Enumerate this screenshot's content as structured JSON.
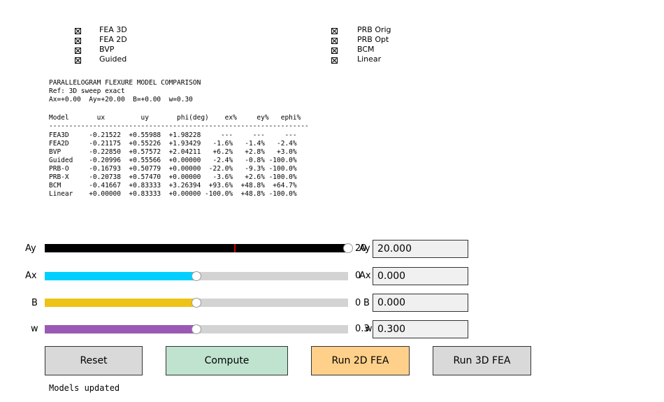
{
  "legend": {
    "left": [
      "FEA 3D",
      "FEA 2D",
      "BVP",
      "Guided"
    ],
    "right": [
      "PRB Orig",
      "PRB Opt",
      "BCM",
      "Linear"
    ]
  },
  "report": {
    "title": "PARALLELOGRAM FLEXURE MODEL COMPARISON",
    "ref": "Ref: 3D sweep exact",
    "params": "Ax=+0.00  Ay=+20.00  B=+0.00  w=0.30",
    "header": "Model       ux         uy       phi(deg)    ex%     ey%   ephi%",
    "rule": "-----------------------------------------------------------------",
    "rows": [
      "FEA3D     -0.21522  +0.55988  +1.98228     ---     ---     ---",
      "FEA2D     -0.21175  +0.55226  +1.93429   -1.6%   -1.4%   -2.4%",
      "BVP       -0.22850  +0.57572  +2.04211   +6.2%   +2.8%   +3.0%",
      "Guided    -0.20996  +0.55566  +0.00000   -2.4%   -0.8% -100.0%",
      "PRB-O     -0.16793  +0.50779  +0.00000  -22.0%   -9.3% -100.0%",
      "PRB-X     -0.20738  +0.57470  +0.00000   -3.6%   +2.6% -100.0%",
      "BCM       -0.41667  +0.83333  +3.26394  +93.6%  +48.8%  +64.7%",
      "Linear    +0.00000  +0.83333  +0.00000 -100.0%  +48.8% -100.0%"
    ]
  },
  "sliders": [
    {
      "label": "Ay",
      "value_text": "20",
      "overlap_text": "Ay",
      "box_label": "Ay",
      "box_value": "20.000",
      "fraction": 1.0,
      "color": "#000000",
      "marker_fraction": 0.625
    },
    {
      "label": "Ax",
      "value_text": "0",
      "box_label": "Ax",
      "box_value": "0.000",
      "fraction": 0.5,
      "color": "#00cfff"
    },
    {
      "label": "B",
      "value_text": "0",
      "box_label": "B",
      "box_value": "0.000",
      "fraction": 0.5,
      "color": "#eec317"
    },
    {
      "label": "w",
      "value_text": "0.3",
      "box_label": "w",
      "box_value": "0.300",
      "fraction": 0.5,
      "color": "#9b59b6"
    }
  ],
  "buttons": {
    "reset": "Reset",
    "compute": "Compute",
    "run2d": "Run 2D FEA",
    "run3d": "Run 3D FEA"
  },
  "colors": {
    "reset_bg": "#d9d9d9",
    "compute_bg": "#bfe3cf",
    "run2d_bg": "#ffd08a",
    "run3d_bg": "#d9d9d9",
    "marker": "#cc0000"
  },
  "status": "Models updated"
}
